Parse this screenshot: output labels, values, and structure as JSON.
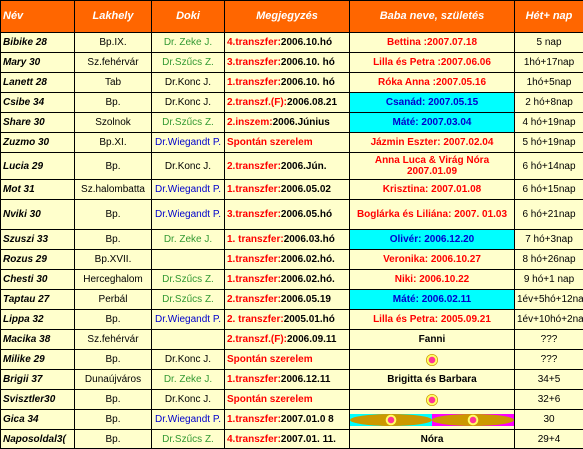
{
  "columns": {
    "nev": "Név",
    "lakhely": "Lakhely",
    "doki": "Doki",
    "megjegyzes": "Megjegyzés",
    "baba": "Baba neve, születés",
    "het": "Hét+ nap"
  },
  "colors": {
    "header_bg": "#ff6600",
    "row_bg": "#ffffcc",
    "baba_magenta": "#ff00ff",
    "baba_cyan": "#00ffff",
    "doc_green": "#339933",
    "doc_blue": "#0000cc",
    "doc_black": "#000000",
    "alert_red": "#ff0000"
  },
  "rows": [
    {
      "nev": "Bibike 28",
      "lakhely": "Bp.IX.",
      "doki": "Dr. Zeke J.",
      "doki_color": "green",
      "meg_red": "4.transzfer:",
      "meg_black": "2006.10.hó",
      "baba": "Bettina :2007.07.18",
      "baba_bg": "magenta",
      "baba_color": "red",
      "het": "5 nap"
    },
    {
      "nev": "Mary 30",
      "lakhely": "Sz.fehérvár",
      "doki": "Dr.Szűcs Z.",
      "doki_color": "green",
      "meg_red": "3.transzfer:",
      "meg_black": "2006.10. hó",
      "baba": "Lilla és Petra :2007.06.06",
      "baba_bg": "magenta",
      "baba_color": "red",
      "het": "1hó+17nap"
    },
    {
      "nev": "Lanett 28",
      "lakhely": "Tab",
      "doki": "Dr.Konc J.",
      "doki_color": "black",
      "meg_red": "1.transzfer:",
      "meg_black": "2006.10. hó",
      "baba": "Róka Anna :2007.05.16",
      "baba_bg": "magenta",
      "baba_color": "red",
      "het": "1hó+5nap"
    },
    {
      "nev": "Csibe 34",
      "lakhely": "Bp.",
      "doki": "Dr.Konc J.",
      "doki_color": "black",
      "meg_red": "2.transzf.(F):",
      "meg_black": "2006.08.21",
      "baba": "Csanád: 2007.05.15",
      "baba_bg": "cyan",
      "baba_color": "blue",
      "het": "2 hó+8nap"
    },
    {
      "nev": "Share 30",
      "lakhely": "Szolnok",
      "doki": "Dr.Szűcs Z.",
      "doki_color": "green",
      "meg_red": "2.inszem:",
      "meg_black": "2006.Június",
      "baba": "Máté: 2007.03.04",
      "baba_bg": "cyan",
      "baba_color": "blue",
      "het": "4 hó+19nap"
    },
    {
      "nev": "Zuzmo 30",
      "lakhely": "Bp.XI.",
      "doki": "Dr.Wiegandt P.",
      "doki_color": "blue",
      "meg_red": "Spontán szerelem",
      "meg_black": "",
      "baba": "Jázmin Eszter: 2007.02.04",
      "baba_bg": "magenta",
      "baba_color": "red",
      "het": "5 hó+19nap"
    },
    {
      "nev": "Lucia 29",
      "lakhely": "Bp.",
      "doki": "Dr.Konc J.",
      "doki_color": "black",
      "meg_red": "2.transzfer:",
      "meg_black": "2006.Jún.",
      "baba": "Anna Luca & Virág Nóra 2007.01.09",
      "baba_bg": "magenta",
      "baba_color": "red",
      "het": "6 hó+14nap"
    },
    {
      "nev": "Mot 31",
      "lakhely": "Sz.halombatta",
      "doki": "Dr.Wiegandt P.",
      "doki_color": "blue",
      "meg_red": "1.transzfer:",
      "meg_black": "2006.05.02",
      "baba": "Krisztina: 2007.01.08",
      "baba_bg": "magenta",
      "baba_color": "red",
      "het": "6 hó+15nap"
    },
    {
      "nev": "Nviki 30",
      "lakhely": "Bp.",
      "doki": "Dr.Wiegandt P.",
      "doki_color": "blue",
      "meg_red": "3.transzfer:",
      "meg_black": "2006.05.hó",
      "baba": "Boglárka és Liliána: 2007. 01.03",
      "baba_bg": "magenta",
      "baba_color": "red",
      "het": "6 hó+21nap"
    },
    {
      "nev": "Szuszi 33",
      "lakhely": "Bp.",
      "doki": "Dr. Zeke J.",
      "doki_color": "green",
      "meg_red": "1. transzfer:",
      "meg_black": "2006.03.hó",
      "baba": "Olivér: 2006.12.20",
      "baba_bg": "cyan",
      "baba_color": "blue",
      "het": "7 hó+3nap"
    },
    {
      "nev": "Rozus 29",
      "lakhely": "Bp.XVII.",
      "doki": "",
      "doki_color": "black",
      "meg_red": "1.transzfer:",
      "meg_black": "2006.02.hó.",
      "baba": "Veronika: 2006.10.27",
      "baba_bg": "magenta",
      "baba_color": "red",
      "het": "8 hó+26nap"
    },
    {
      "nev": "Chesti 30",
      "lakhely": "Herceghalom",
      "doki": "Dr.Szűcs Z.",
      "doki_color": "green",
      "meg_red": "1.transzfer:",
      "meg_black": "2006.02.hó.",
      "baba": "Niki: 2006.10.22",
      "baba_bg": "magenta",
      "baba_color": "red",
      "het": "9 hó+1 nap"
    },
    {
      "nev": "Taptau 27",
      "lakhely": "Perbál",
      "doki": "Dr.Szűcs Z.",
      "doki_color": "green",
      "meg_red": "2.transzfer:",
      "meg_black": "2006.05.19",
      "baba": "Máté: 2006.02.11",
      "baba_bg": "cyan",
      "baba_color": "blue",
      "het": "1év+5hó+12nap"
    },
    {
      "nev": "Lippa 32",
      "lakhely": "Bp.",
      "doki": "Dr.Wiegandt P.",
      "doki_color": "blue",
      "meg_red": "2. transzfer:",
      "meg_black": "2005.01.hó",
      "baba": "Lilla és Petra: 2005.09.21",
      "baba_bg": "magenta",
      "baba_color": "red",
      "het": "1év+10hó+2nap"
    },
    {
      "nev": "Macika 38",
      "lakhely": "Sz.fehérvár",
      "doki": "",
      "doki_color": "black",
      "meg_red": "2.transzf.(F):",
      "meg_black": "2006.09.11",
      "baba": "Fanni",
      "baba_bg": "magenta",
      "baba_color": "black",
      "het": "???"
    },
    {
      "nev": "Milike 29",
      "lakhely": "Bp.",
      "doki": "Dr.Konc J.",
      "doki_color": "black",
      "meg_red": "Spontán szerelem",
      "meg_black": "",
      "baba": "",
      "baba_bg": "heart",
      "baba_color": "black",
      "het": "???"
    },
    {
      "nev": "Brigii 37",
      "lakhely": "Dunaújváros",
      "doki": "Dr. Zeke J.",
      "doki_color": "green",
      "meg_red": "1.transzfer:",
      "meg_black": "2006.12.11",
      "baba": "Brigitta és Barbara",
      "baba_bg": "magenta",
      "baba_color": "black",
      "het": "34+5"
    },
    {
      "nev": "Svisztler30",
      "lakhely": "Bp.",
      "doki": "Dr.Konc J.",
      "doki_color": "black",
      "meg_red": "Spontán szerelem",
      "meg_black": "",
      "baba": "",
      "baba_bg": "heart",
      "baba_color": "black",
      "het": "32+6"
    },
    {
      "nev": "Gica 34",
      "lakhely": "Bp.",
      "doki": "Dr.Wiegandt P.",
      "doki_color": "blue",
      "meg_red": "1.transzfer:",
      "meg_black": "2007.01.0 8",
      "baba": "",
      "baba_bg": "split",
      "baba_color": "black",
      "het": "30"
    },
    {
      "nev": "Naposoldal3(",
      "lakhely": "Bp.",
      "doki": "Dr.Szűcs Z.",
      "doki_color": "green",
      "meg_red": "4.transzfer:",
      "meg_black": "2007.01. 11.",
      "baba": "Nóra",
      "baba_bg": "magenta",
      "baba_color": "black",
      "het": "29+4"
    }
  ]
}
